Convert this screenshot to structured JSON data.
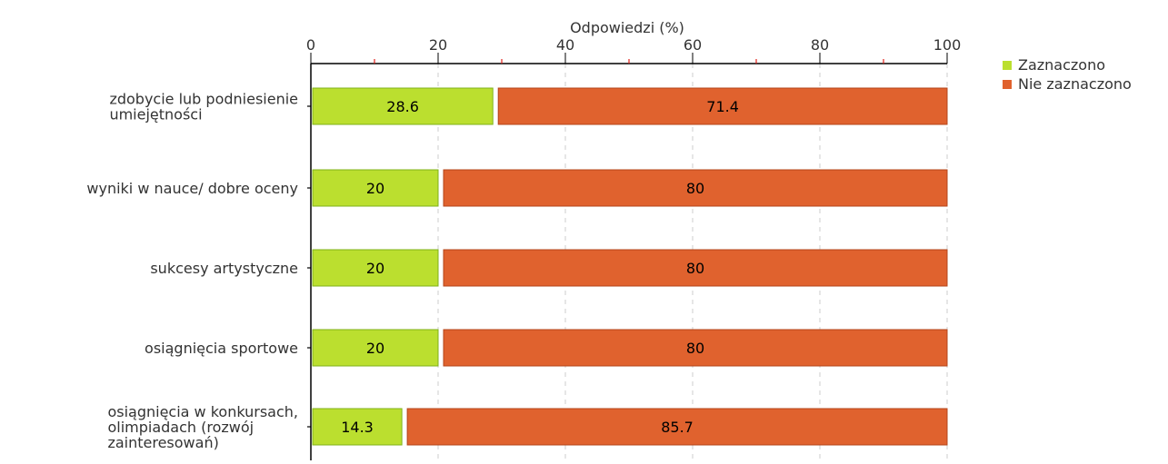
{
  "chart_data": {
    "type": "bar",
    "orientation": "horizontal",
    "stacked": true,
    "title": "",
    "xlabel": "Odpowiedzi (%)",
    "ylabel": "",
    "xlim": [
      0,
      100
    ],
    "x_ticks": [
      "0",
      "20",
      "40",
      "60",
      "80",
      "100"
    ],
    "grid": true,
    "legend_position": "top-right",
    "categories": [
      [
        "zdobycie lub podniesienie",
        "umiejętności"
      ],
      [
        "wyniki w nauce/ dobre oceny"
      ],
      [
        "sukcesy artystyczne"
      ],
      [
        "osiągnięcia sportowe"
      ],
      [
        "osiągnięcia w konkursach,",
        "olimpiadach (rozwój",
        "zainteresowań)"
      ]
    ],
    "series": [
      {
        "name": "Zaznaczono",
        "color": "#bbdf2f",
        "stroke": "#7fb21a",
        "values": [
          28.6,
          20,
          20,
          20,
          14.3
        ],
        "labels": [
          "28.6",
          "20",
          "20",
          "20",
          "14.3"
        ]
      },
      {
        "name": "Nie zaznaczono",
        "color": "#e0622e",
        "stroke": "#b3441a",
        "values": [
          71.4,
          80,
          80,
          80,
          85.7
        ],
        "labels": [
          "71.4",
          "80",
          "80",
          "80",
          "85.7"
        ]
      }
    ]
  }
}
